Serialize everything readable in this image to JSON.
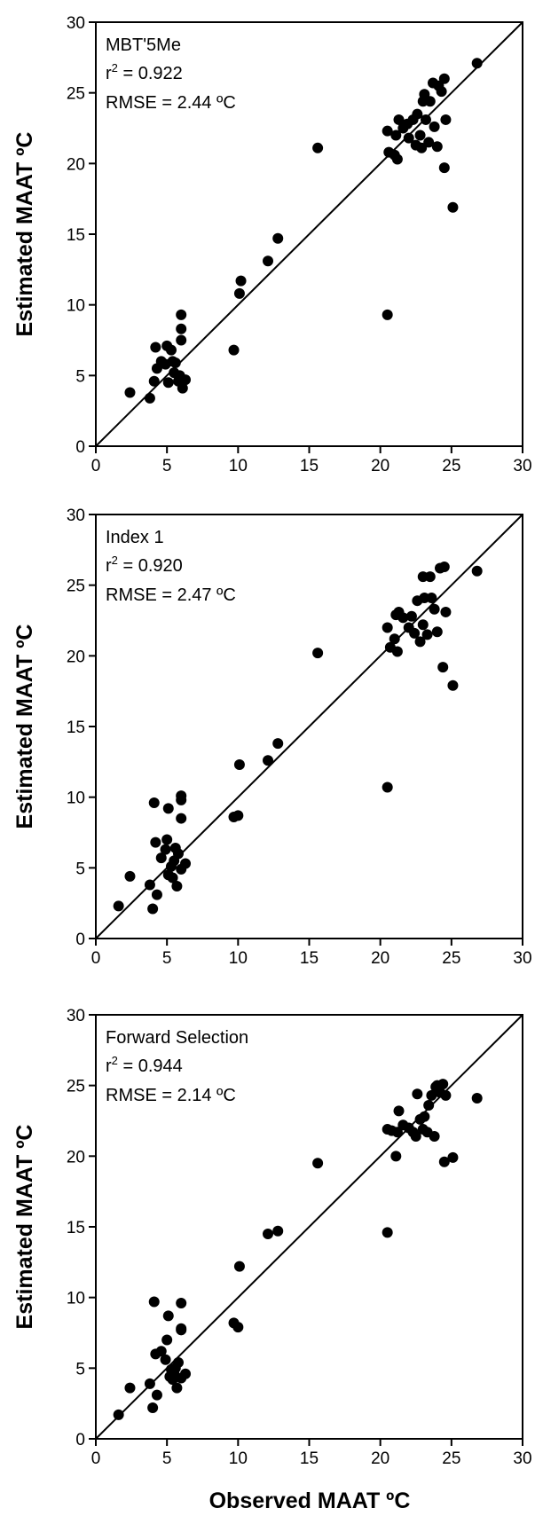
{
  "chart_data": [
    {
      "type": "scatter",
      "panel_label": "MBT'5Me",
      "r2_prefix": "r",
      "r2_sup": "2",
      "r2_value": " = 0.922",
      "rmse": "RMSE = 2.44 ºC",
      "ylabel": "Estimated MAAT ºC",
      "xlabel": "",
      "xlim": [
        0,
        30
      ],
      "ylim": [
        0,
        30
      ],
      "xticks": [
        0,
        5,
        10,
        15,
        20,
        25,
        30
      ],
      "yticks": [
        0,
        5,
        10,
        15,
        20,
        25,
        30
      ],
      "reference_line": "1:1",
      "points": [
        [
          2.4,
          3.8
        ],
        [
          3.8,
          3.4
        ],
        [
          4.1,
          4.6
        ],
        [
          4.2,
          7.0
        ],
        [
          4.3,
          5.5
        ],
        [
          4.6,
          6.0
        ],
        [
          4.9,
          5.8
        ],
        [
          5.0,
          7.1
        ],
        [
          5.1,
          4.5
        ],
        [
          5.3,
          6.8
        ],
        [
          5.4,
          6.0
        ],
        [
          5.5,
          5.2
        ],
        [
          5.6,
          5.9
        ],
        [
          5.8,
          4.6
        ],
        [
          5.9,
          5.0
        ],
        [
          6.0,
          7.5
        ],
        [
          6.0,
          9.3
        ],
        [
          6.0,
          8.3
        ],
        [
          6.1,
          4.1
        ],
        [
          6.3,
          4.7
        ],
        [
          9.7,
          6.8
        ],
        [
          10.1,
          10.8
        ],
        [
          10.2,
          11.7
        ],
        [
          12.1,
          13.1
        ],
        [
          12.8,
          14.7
        ],
        [
          15.6,
          21.1
        ],
        [
          20.5,
          9.3
        ],
        [
          20.5,
          22.3
        ],
        [
          20.6,
          20.8
        ],
        [
          21.0,
          20.6
        ],
        [
          21.1,
          22.0
        ],
        [
          21.2,
          20.3
        ],
        [
          21.3,
          23.1
        ],
        [
          21.6,
          22.5
        ],
        [
          21.9,
          22.8
        ],
        [
          22.0,
          21.8
        ],
        [
          22.3,
          23.1
        ],
        [
          22.5,
          21.3
        ],
        [
          22.6,
          23.5
        ],
        [
          22.8,
          22.0
        ],
        [
          22.9,
          21.1
        ],
        [
          23.0,
          24.4
        ],
        [
          23.1,
          24.9
        ],
        [
          23.2,
          23.1
        ],
        [
          23.4,
          21.5
        ],
        [
          23.5,
          24.4
        ],
        [
          23.7,
          25.7
        ],
        [
          23.8,
          22.6
        ],
        [
          24.0,
          21.2
        ],
        [
          24.1,
          25.5
        ],
        [
          24.3,
          25.1
        ],
        [
          24.5,
          19.7
        ],
        [
          24.5,
          26.0
        ],
        [
          24.6,
          23.1
        ],
        [
          25.1,
          16.9
        ],
        [
          26.8,
          27.1
        ]
      ]
    },
    {
      "type": "scatter",
      "panel_label": "Index 1",
      "r2_prefix": "r",
      "r2_sup": "2",
      "r2_value": " = 0.920",
      "rmse": "RMSE = 2.47 ºC",
      "ylabel": "Estimated MAAT ºC",
      "xlabel": "",
      "xlim": [
        0,
        30
      ],
      "ylim": [
        0,
        30
      ],
      "xticks": [
        0,
        5,
        10,
        15,
        20,
        25,
        30
      ],
      "yticks": [
        0,
        5,
        10,
        15,
        20,
        25,
        30
      ],
      "reference_line": "1:1",
      "points": [
        [
          1.6,
          2.3
        ],
        [
          2.4,
          4.4
        ],
        [
          3.8,
          3.8
        ],
        [
          4.0,
          2.1
        ],
        [
          4.1,
          9.6
        ],
        [
          4.2,
          6.8
        ],
        [
          4.3,
          3.1
        ],
        [
          4.6,
          5.7
        ],
        [
          4.9,
          6.3
        ],
        [
          5.0,
          7.0
        ],
        [
          5.1,
          4.5
        ],
        [
          5.1,
          9.2
        ],
        [
          5.3,
          5.1
        ],
        [
          5.4,
          4.3
        ],
        [
          5.5,
          5.5
        ],
        [
          5.6,
          6.4
        ],
        [
          5.7,
          3.7
        ],
        [
          5.8,
          6.0
        ],
        [
          6.0,
          4.9
        ],
        [
          6.0,
          10.1
        ],
        [
          6.0,
          9.8
        ],
        [
          6.0,
          8.5
        ],
        [
          6.3,
          5.3
        ],
        [
          9.7,
          8.6
        ],
        [
          10.0,
          8.7
        ],
        [
          10.1,
          12.3
        ],
        [
          12.1,
          12.6
        ],
        [
          12.8,
          13.8
        ],
        [
          15.6,
          20.2
        ],
        [
          20.5,
          10.7
        ],
        [
          20.5,
          22.0
        ],
        [
          20.7,
          20.6
        ],
        [
          21.0,
          21.2
        ],
        [
          21.1,
          22.9
        ],
        [
          21.2,
          20.3
        ],
        [
          21.3,
          23.1
        ],
        [
          21.6,
          22.7
        ],
        [
          22.0,
          22.0
        ],
        [
          22.2,
          22.8
        ],
        [
          22.4,
          21.6
        ],
        [
          22.6,
          23.9
        ],
        [
          22.8,
          21.0
        ],
        [
          23.0,
          25.6
        ],
        [
          23.0,
          22.2
        ],
        [
          23.1,
          24.1
        ],
        [
          23.3,
          21.5
        ],
        [
          23.5,
          25.6
        ],
        [
          23.6,
          24.1
        ],
        [
          23.8,
          23.3
        ],
        [
          24.0,
          21.7
        ],
        [
          24.2,
          26.2
        ],
        [
          24.4,
          19.2
        ],
        [
          24.5,
          26.3
        ],
        [
          24.6,
          23.1
        ],
        [
          25.1,
          17.9
        ],
        [
          26.8,
          26.0
        ]
      ]
    },
    {
      "type": "scatter",
      "panel_label": "Forward Selection",
      "r2_prefix": "r",
      "r2_sup": "2",
      "r2_value": " = 0.944",
      "rmse": "RMSE = 2.14 ºC",
      "ylabel": "Estimated MAAT ºC",
      "xlabel": "Observed MAAT ºC",
      "xlim": [
        0,
        30
      ],
      "ylim": [
        0,
        30
      ],
      "xticks": [
        0,
        5,
        10,
        15,
        20,
        25,
        30
      ],
      "yticks": [
        0,
        5,
        10,
        15,
        20,
        25,
        30
      ],
      "reference_line": "1:1",
      "points": [
        [
          1.6,
          1.7
        ],
        [
          2.4,
          3.6
        ],
        [
          3.8,
          3.9
        ],
        [
          4.0,
          2.2
        ],
        [
          4.1,
          9.7
        ],
        [
          4.2,
          6.0
        ],
        [
          4.3,
          3.1
        ],
        [
          4.6,
          6.2
        ],
        [
          4.9,
          5.6
        ],
        [
          5.0,
          7.0
        ],
        [
          5.1,
          8.7
        ],
        [
          5.2,
          4.4
        ],
        [
          5.3,
          4.9
        ],
        [
          5.4,
          4.2
        ],
        [
          5.5,
          4.6
        ],
        [
          5.6,
          5.0
        ],
        [
          5.7,
          3.6
        ],
        [
          5.8,
          5.4
        ],
        [
          6.0,
          4.3
        ],
        [
          6.0,
          9.6
        ],
        [
          6.0,
          7.7
        ],
        [
          6.0,
          7.8
        ],
        [
          6.3,
          4.6
        ],
        [
          9.7,
          8.2
        ],
        [
          10.0,
          7.9
        ],
        [
          10.1,
          12.2
        ],
        [
          12.1,
          14.5
        ],
        [
          12.8,
          14.7
        ],
        [
          15.6,
          19.5
        ],
        [
          20.5,
          14.6
        ],
        [
          20.5,
          21.9
        ],
        [
          20.8,
          21.8
        ],
        [
          21.1,
          20.0
        ],
        [
          21.2,
          21.7
        ],
        [
          21.3,
          23.2
        ],
        [
          21.6,
          22.2
        ],
        [
          22.0,
          22.0
        ],
        [
          22.3,
          21.7
        ],
        [
          22.5,
          21.4
        ],
        [
          22.6,
          24.4
        ],
        [
          22.8,
          22.6
        ],
        [
          23.0,
          21.9
        ],
        [
          23.1,
          22.8
        ],
        [
          23.3,
          21.7
        ],
        [
          23.4,
          23.6
        ],
        [
          23.6,
          24.3
        ],
        [
          23.8,
          21.4
        ],
        [
          23.9,
          24.9
        ],
        [
          24.0,
          25.0
        ],
        [
          24.2,
          24.5
        ],
        [
          24.4,
          25.1
        ],
        [
          24.5,
          19.6
        ],
        [
          24.6,
          24.3
        ],
        [
          25.1,
          19.9
        ],
        [
          26.8,
          24.1
        ]
      ]
    }
  ]
}
